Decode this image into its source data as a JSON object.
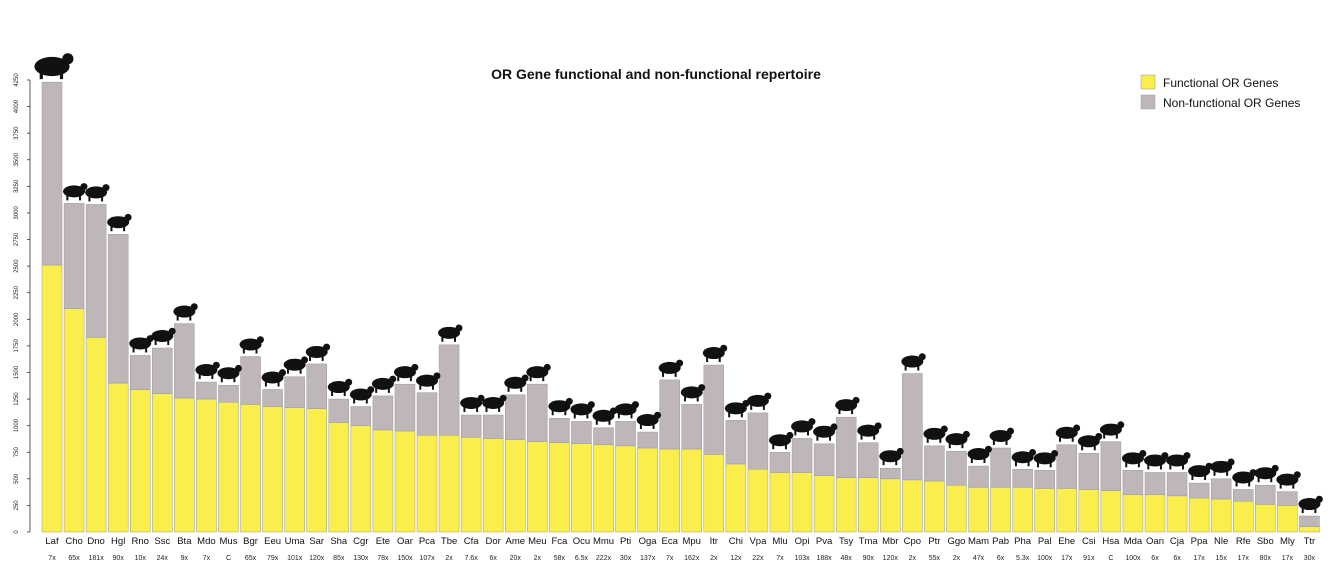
{
  "chart_data": {
    "type": "bar",
    "stacked": true,
    "title": "OR Gene functional and non-functional repertoire",
    "xlabel": "",
    "ylabel": "",
    "ylim": [
      0,
      4250
    ],
    "yticks": [
      0,
      250,
      500,
      750,
      1000,
      1250,
      1500,
      1750,
      2000,
      2250,
      2500,
      2750,
      3000,
      3250,
      3500,
      3750,
      4000,
      4250
    ],
    "legend_position": "top-right",
    "grid": false,
    "categories": [
      "Laf",
      "Cho",
      "Dno",
      "Hgl",
      "Rno",
      "Ssc",
      "Bta",
      "Mdo",
      "Mus",
      "Bgr",
      "Eeu",
      "Uma",
      "Sar",
      "Sha",
      "Cgr",
      "Ete",
      "Oar",
      "Pca",
      "Tbe",
      "Cfa",
      "Dor",
      "Ame",
      "Meu",
      "Fca",
      "Ocu",
      "Mmu",
      "Pti",
      "Oga",
      "Eca",
      "Mpu",
      "Itr",
      "Chi",
      "Vpa",
      "Mlu",
      "Opi",
      "Pva",
      "Tsy",
      "Tma",
      "Mbr",
      "Cpo",
      "Ptr",
      "Ggo",
      "Mam",
      "Pab",
      "Pha",
      "Pal",
      "Ehe",
      "Csi",
      "Hsa",
      "Mda",
      "Oan",
      "Cja",
      "Ppa",
      "Nle",
      "Rfe",
      "Sbo",
      "Mly",
      "Ttr"
    ],
    "coverage": [
      "7x",
      "65x",
      "181x",
      "90x",
      "10x",
      "24x",
      "9x",
      "7x",
      "C",
      "65x",
      "79x",
      "101x",
      "120x",
      "85x",
      "130x",
      "78x",
      "150x",
      "107x",
      "2x",
      "7.6x",
      "6x",
      "20x",
      "2x",
      "58x",
      "6.5x",
      "222x",
      "30x",
      "137x",
      "7x",
      "162x",
      "2x",
      "12x",
      "22x",
      "7x",
      "103x",
      "188x",
      "48x",
      "90x",
      "120x",
      "2x",
      "55x",
      "2x",
      "47x",
      "6x",
      "5.3x",
      "100x",
      "17x",
      "91x",
      "C",
      "100x",
      "6x",
      "6x",
      "17x",
      "15x",
      "17x",
      "80x",
      "17x",
      "30x"
    ],
    "series": [
      {
        "name": "Functional OR Genes",
        "color": "#FAEE4C",
        "values": [
          2510,
          2100,
          1830,
          1400,
          1340,
          1300,
          1260,
          1250,
          1220,
          1200,
          1180,
          1170,
          1160,
          1030,
          1000,
          960,
          950,
          910,
          910,
          890,
          880,
          870,
          850,
          840,
          830,
          820,
          810,
          790,
          780,
          780,
          730,
          640,
          590,
          560,
          560,
          530,
          510,
          510,
          500,
          490,
          480,
          440,
          420,
          420,
          420,
          410,
          410,
          400,
          390,
          350,
          350,
          340,
          320,
          310,
          290,
          260,
          250,
          50
        ]
      },
      {
        "name": "Non-functional OR Genes",
        "color": "#BFB7B7",
        "values": [
          1720,
          990,
          1250,
          1400,
          320,
          430,
          700,
          160,
          160,
          450,
          160,
          290,
          420,
          220,
          180,
          320,
          440,
          400,
          850,
          210,
          220,
          420,
          540,
          230,
          210,
          160,
          230,
          150,
          650,
          420,
          840,
          410,
          530,
          190,
          320,
          300,
          570,
          330,
          100,
          1000,
          330,
          320,
          200,
          370,
          170,
          170,
          410,
          340,
          460,
          230,
          210,
          220,
          140,
          190,
          110,
          180,
          130,
          100
        ]
      }
    ],
    "icons": [
      "elephant-silhouette",
      "sloth-silhouette",
      "armadillo-silhouette",
      "mole-rat-silhouette",
      "rat-silhouette",
      "pig-silhouette",
      "cow-silhouette",
      "opossum-silhouette",
      "mouse-silhouette",
      "bison-silhouette",
      "hedgehog-silhouette",
      "bear-silhouette",
      "shrew-silhouette",
      "tasmanian-devil-silhouette",
      "hamster-silhouette",
      "tenrec-silhouette",
      "sheep-silhouette",
      "pika-silhouette",
      "tree-shrew-silhouette",
      "dog-silhouette",
      "degu-silhouette",
      "panda-silhouette",
      "wallaby-silhouette",
      "cat-silhouette",
      "rabbit-silhouette",
      "macaque-silhouette",
      "tiger-silhouette",
      "galago-silhouette",
      "horse-silhouette",
      "ferret-silhouette",
      "squirrel-silhouette",
      "goat-silhouette",
      "alpaca-silhouette",
      "bat-silhouette",
      "pika-silhouette",
      "bat-silhouette",
      "tarsier-silhouette",
      "manatee-silhouette",
      "bat-silhouette",
      "guinea-pig-silhouette",
      "chimpanzee-silhouette",
      "gorilla-silhouette",
      "marmot-silhouette",
      "orangutan-silhouette",
      "baboon-silhouette",
      "bat-silhouette",
      "bat-silhouette",
      "monkey-silhouette",
      "human-silhouette",
      "lizard-silhouette",
      "platypus-silhouette",
      "marmoset-silhouette",
      "bonobo-silhouette",
      "gibbon-silhouette",
      "bat-silhouette",
      "squirrel-monkey-silhouette",
      "bat-silhouette",
      "dolphin-silhouette"
    ]
  }
}
